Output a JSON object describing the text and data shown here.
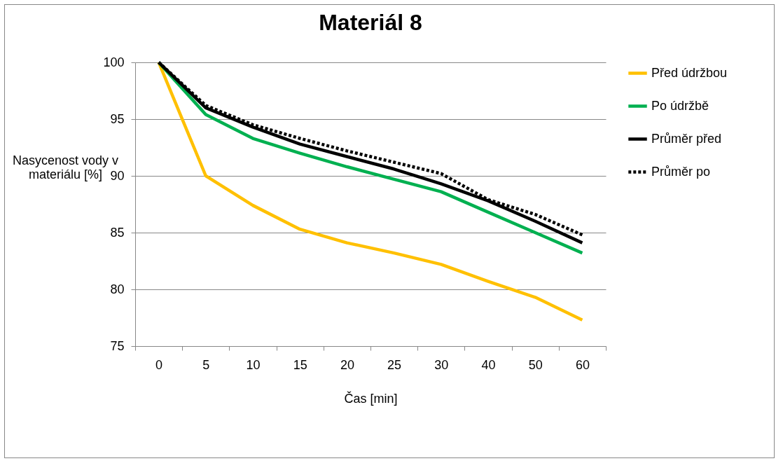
{
  "chart_data": {
    "type": "line",
    "title": "Materiál 8",
    "xlabel": "Čas [min]",
    "ylabel": "Nasycenost vody v\nmateriálu [%]",
    "categories": [
      "0",
      "5",
      "10",
      "15",
      "20",
      "25",
      "30",
      "40",
      "50",
      "60"
    ],
    "series": [
      {
        "name": "Před údržbou",
        "color": "#ffc000",
        "line_style": "solid",
        "values": [
          100,
          90.0,
          87.4,
          85.3,
          84.1,
          83.2,
          82.2,
          80.7,
          79.3,
          77.3
        ]
      },
      {
        "name": "Po údržbě",
        "color": "#00b050",
        "line_style": "solid",
        "values": [
          100,
          95.4,
          93.3,
          92.0,
          90.8,
          89.7,
          88.6,
          86.8,
          85.0,
          83.2
        ]
      },
      {
        "name": "Průměr před",
        "color": "#000000",
        "line_style": "solid",
        "values": [
          100,
          96.0,
          94.3,
          92.8,
          91.7,
          90.6,
          89.3,
          87.8,
          86.0,
          84.1
        ]
      },
      {
        "name": "Průměr po",
        "color": "#000000",
        "line_style": "dashed",
        "values": [
          100,
          96.2,
          94.5,
          93.3,
          92.2,
          91.2,
          90.2,
          87.9,
          86.6,
          84.8
        ]
      }
    ],
    "ylim": [
      75,
      100
    ],
    "yticks": [
      75,
      80,
      85,
      90,
      95,
      100
    ],
    "grid": "y",
    "legend": "right",
    "marker": "none"
  }
}
